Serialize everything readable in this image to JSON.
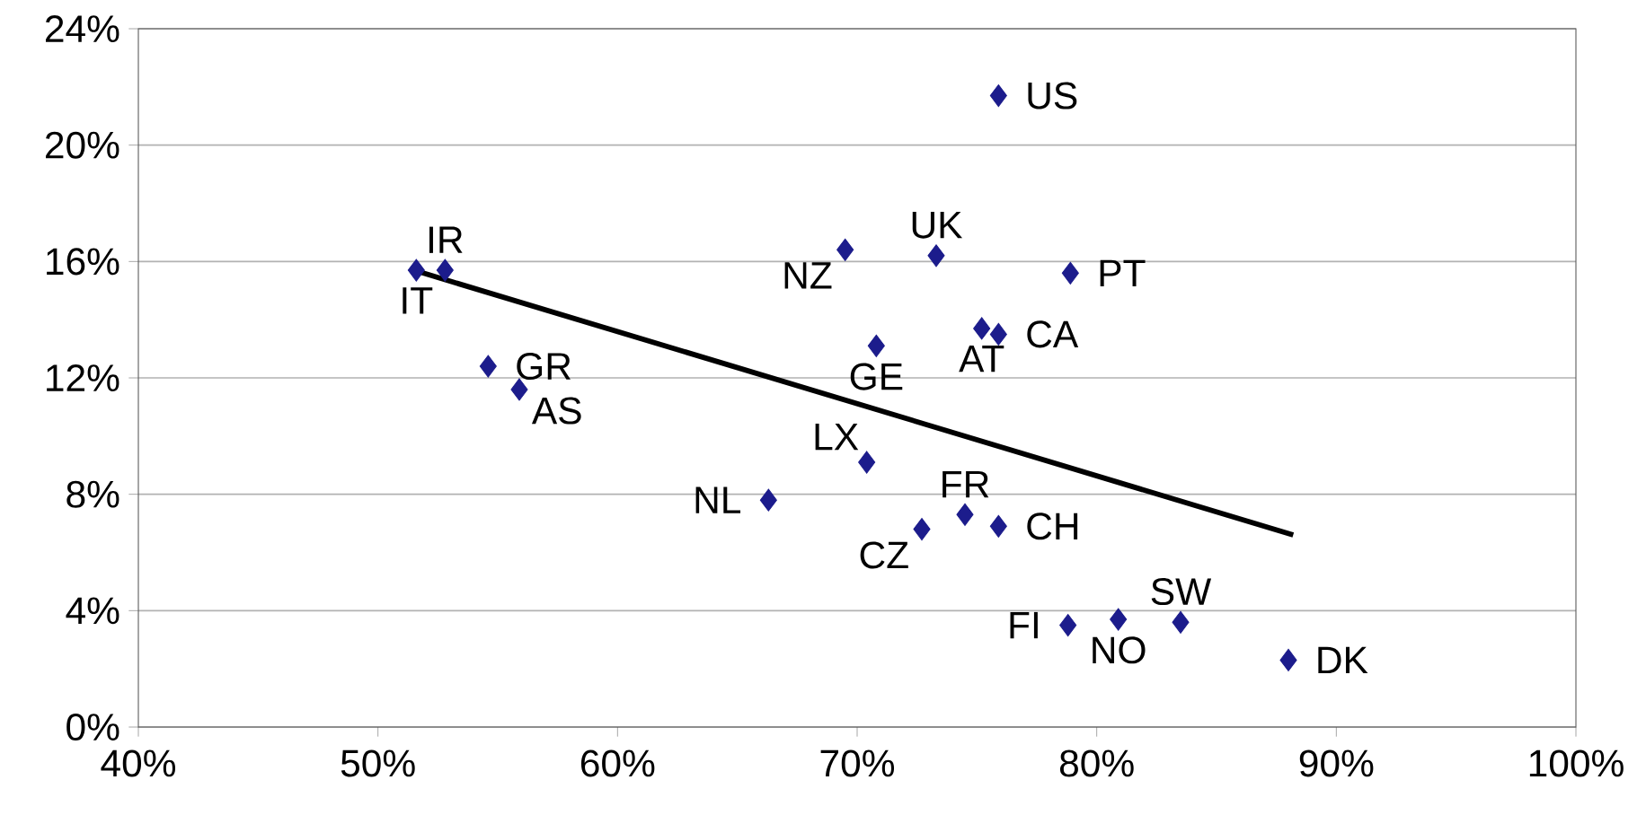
{
  "chart_data": {
    "type": "scatter",
    "marker": "diamond",
    "grid": "y",
    "xlim": [
      40,
      100
    ],
    "ylim": [
      0,
      24
    ],
    "xticks": [
      {
        "value": 40,
        "label": "40%"
      },
      {
        "value": 50,
        "label": "50%"
      },
      {
        "value": 60,
        "label": "60%"
      },
      {
        "value": 70,
        "label": "70%"
      },
      {
        "value": 80,
        "label": "80%"
      },
      {
        "value": 90,
        "label": "90%"
      },
      {
        "value": 100,
        "label": "100%"
      }
    ],
    "yticks": [
      {
        "value": 0,
        "label": "0%"
      },
      {
        "value": 4,
        "label": "4%"
      },
      {
        "value": 8,
        "label": "8%"
      },
      {
        "value": 12,
        "label": "12%"
      },
      {
        "value": 16,
        "label": "16%"
      },
      {
        "value": 20,
        "label": "20%"
      },
      {
        "value": 24,
        "label": "24%"
      }
    ],
    "series": [
      {
        "color": "#1c1c8c",
        "x": [
          75.9,
          52.8,
          51.6,
          69.5,
          73.3,
          78.9,
          54.6,
          55.9,
          70.8,
          75.9,
          75.2,
          70.4,
          66.3,
          74.5,
          72.7,
          75.9,
          78.8,
          80.9,
          83.5,
          88.0
        ],
        "values": [
          21.7,
          15.7,
          15.7,
          16.4,
          16.2,
          15.6,
          12.4,
          11.6,
          13.1,
          13.5,
          13.7,
          9.1,
          7.8,
          7.3,
          6.8,
          6.9,
          3.5,
          3.7,
          3.6,
          2.3
        ]
      },
      {
        "type": "line",
        "marker": "none",
        "color": "#000000",
        "x": [
          51.5,
          88.2
        ],
        "values": [
          15.7,
          6.6
        ]
      }
    ],
    "annotations": [
      {
        "text": "US",
        "x": 75.9,
        "y": 21.7
      },
      {
        "text": "IR",
        "x": 52.8,
        "y": 15.7
      },
      {
        "text": "IT",
        "x": 51.6,
        "y": 15.7
      },
      {
        "text": "NZ",
        "x": 69.5,
        "y": 16.4
      },
      {
        "text": "UK",
        "x": 73.3,
        "y": 16.2
      },
      {
        "text": "PT",
        "x": 78.9,
        "y": 15.6
      },
      {
        "text": "GR",
        "x": 54.6,
        "y": 12.4
      },
      {
        "text": "AS",
        "x": 55.9,
        "y": 11.6
      },
      {
        "text": "GE",
        "x": 70.8,
        "y": 13.1
      },
      {
        "text": "CA",
        "x": 75.9,
        "y": 13.5
      },
      {
        "text": "AT",
        "x": 75.2,
        "y": 13.7
      },
      {
        "text": "LX",
        "x": 70.4,
        "y": 9.1
      },
      {
        "text": "NL",
        "x": 66.3,
        "y": 7.8
      },
      {
        "text": "FR",
        "x": 74.5,
        "y": 7.3
      },
      {
        "text": "CZ",
        "x": 72.7,
        "y": 6.8
      },
      {
        "text": "CH",
        "x": 75.9,
        "y": 6.9
      },
      {
        "text": "FI",
        "x": 78.8,
        "y": 3.5
      },
      {
        "text": "NO",
        "x": 80.9,
        "y": 3.7
      },
      {
        "text": "SW",
        "x": 83.5,
        "y": 3.6
      },
      {
        "text": "DK",
        "x": 88.0,
        "y": 2.3
      }
    ]
  }
}
